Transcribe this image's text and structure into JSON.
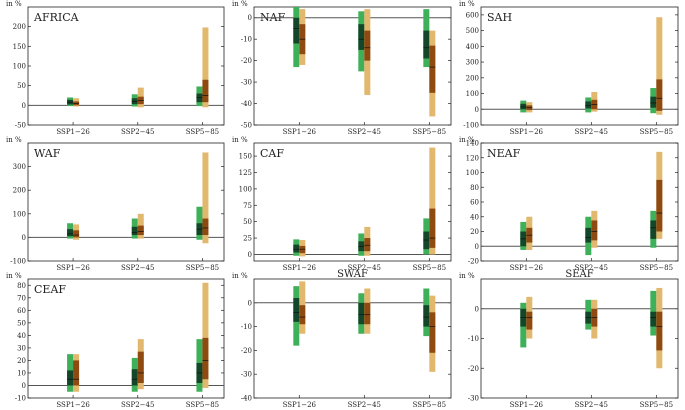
{
  "colors": {
    "cmip_outer": "#3fb05a",
    "cmip_inner": "#14472a",
    "cordex_outer": "#e1b86d",
    "cordex_inner": "#8e4a10",
    "zero_line": "#555555"
  },
  "chart_data": [
    {
      "type": "box-range",
      "title": "AFRICA",
      "unit_label": "in %",
      "title_inside": true,
      "ylim": [
        -50,
        250
      ],
      "yticks": [
        -50,
        0,
        50,
        100,
        150,
        200
      ],
      "categories": [
        "SSP1−26",
        "SSP2−45",
        "SSP5−85"
      ],
      "series": [
        {
          "name": "green",
          "data": [
            [
              -2,
              2,
              8,
              14,
              20
            ],
            [
              -3,
              3,
              10,
              18,
              28
            ],
            [
              -2,
              8,
              20,
              30,
              48
            ]
          ]
        },
        {
          "name": "brown",
          "data": [
            [
              -3,
              0,
              5,
              10,
              18
            ],
            [
              -5,
              3,
              12,
              22,
              45
            ],
            [
              -5,
              8,
              25,
              65,
              198
            ]
          ]
        }
      ]
    },
    {
      "type": "box-range",
      "title": "NAF",
      "unit_label": "in %",
      "title_inside": true,
      "ylim": [
        -50,
        5
      ],
      "yticks": [
        -50,
        -40,
        -30,
        -20,
        -10,
        0
      ],
      "categories": [
        "SSP1−26",
        "SSP2−45",
        "SSP5−85"
      ],
      "series": [
        {
          "name": "green",
          "data": [
            [
              -23,
              -12,
              -5,
              0,
              5
            ],
            [
              -25,
              -15,
              -10,
              -3,
              3
            ],
            [
              -23,
              -19,
              -14,
              -6,
              4
            ]
          ]
        },
        {
          "name": "brown",
          "data": [
            [
              -22,
              -17,
              -10,
              -3,
              4
            ],
            [
              -36,
              -20,
              -14,
              -6,
              4
            ],
            [
              -46,
              -35,
              -23,
              -13,
              -6
            ]
          ]
        }
      ]
    },
    {
      "type": "box-range",
      "title": "SAH",
      "unit_label": "in %",
      "title_inside": true,
      "ylim": [
        -100,
        650
      ],
      "yticks": [
        -100,
        0,
        100,
        200,
        300,
        400,
        500,
        600
      ],
      "categories": [
        "SSP1−26",
        "SSP2−45",
        "SSP5−85"
      ],
      "series": [
        {
          "name": "green",
          "data": [
            [
              -20,
              0,
              15,
              35,
              55
            ],
            [
              -20,
              5,
              25,
              50,
              75
            ],
            [
              -25,
              10,
              40,
              80,
              135
            ]
          ]
        },
        {
          "name": "brown",
          "data": [
            [
              -20,
              -5,
              10,
              25,
              45
            ],
            [
              -15,
              0,
              30,
              60,
              110
            ],
            [
              -35,
              -10,
              70,
              190,
              585
            ]
          ]
        }
      ]
    },
    {
      "type": "box-range",
      "title": "WAF",
      "unit_label": "in %",
      "title_inside": true,
      "ylim": [
        -100,
        400
      ],
      "yticks": [
        -100,
        0,
        100,
        200,
        300
      ],
      "categories": [
        "SSP1−26",
        "SSP2−45",
        "SSP5−85"
      ],
      "series": [
        {
          "name": "green",
          "data": [
            [
              -5,
              5,
              15,
              35,
              60
            ],
            [
              -5,
              10,
              20,
              45,
              80
            ],
            [
              -10,
              10,
              35,
              60,
              130
            ]
          ]
        },
        {
          "name": "brown",
          "data": [
            [
              -10,
              0,
              10,
              30,
              55
            ],
            [
              -5,
              10,
              25,
              50,
              100
            ],
            [
              -25,
              10,
              40,
              80,
              360
            ]
          ]
        }
      ]
    },
    {
      "type": "box-range",
      "title": "CAF",
      "unit_label": "in %",
      "title_inside": true,
      "ylim": [
        -10,
        170
      ],
      "yticks": [
        0,
        25,
        50,
        75,
        100,
        125,
        150
      ],
      "categories": [
        "SSP1−26",
        "SSP2−45",
        "SSP5−85"
      ],
      "series": [
        {
          "name": "green",
          "data": [
            [
              -2,
              3,
              8,
              15,
              23
            ],
            [
              -2,
              5,
              12,
              20,
              32
            ],
            [
              0,
              8,
              22,
              35,
              55
            ]
          ]
        },
        {
          "name": "brown",
          "data": [
            [
              -3,
              2,
              8,
              13,
              22
            ],
            [
              -2,
              5,
              14,
              25,
              42
            ],
            [
              0,
              10,
              25,
              70,
              163
            ]
          ]
        }
      ]
    },
    {
      "type": "box-range",
      "title": "NEAF",
      "unit_label": "in %",
      "title_inside": true,
      "ylim": [
        -20,
        140
      ],
      "yticks": [
        -20,
        0,
        20,
        40,
        60,
        80,
        100,
        120,
        140
      ],
      "categories": [
        "SSP1−26",
        "SSP2−45",
        "SSP5−85"
      ],
      "series": [
        {
          "name": "green",
          "data": [
            [
              -5,
              0,
              10,
              20,
              33
            ],
            [
              -12,
              5,
              12,
              25,
              40
            ],
            [
              -2,
              10,
              25,
              35,
              48
            ]
          ]
        },
        {
          "name": "brown",
          "data": [
            [
              -5,
              5,
              15,
              25,
              40
            ],
            [
              -2,
              8,
              20,
              35,
              48
            ],
            [
              10,
              20,
              45,
              90,
              128
            ]
          ]
        }
      ]
    },
    {
      "type": "box-range",
      "title": "CEAF",
      "unit_label": "in %",
      "title_inside": true,
      "ylim": [
        -10,
        85
      ],
      "yticks": [
        -10,
        0,
        10,
        20,
        30,
        40,
        50,
        60,
        70,
        80
      ],
      "categories": [
        "SSP1−26",
        "SSP2−45",
        "SSP5−85"
      ],
      "series": [
        {
          "name": "green",
          "data": [
            [
              -5,
              0,
              5,
              12,
              25
            ],
            [
              -5,
              0,
              5,
              13,
              22
            ],
            [
              -5,
              2,
              10,
              18,
              37
            ]
          ]
        },
        {
          "name": "brown",
          "data": [
            [
              -5,
              0,
              5,
              20,
              25
            ],
            [
              -3,
              2,
              10,
              27,
              37
            ],
            [
              -2,
              5,
              20,
              38,
              82
            ]
          ]
        }
      ]
    },
    {
      "type": "box-range",
      "title": "SWAF",
      "unit_label": "in %",
      "title_inside": false,
      "ylim": [
        -40,
        10
      ],
      "yticks": [
        -40,
        -30,
        -20,
        -10,
        0
      ],
      "categories": [
        "SSP1−26",
        "SSP2−45",
        "SSP5−85"
      ],
      "series": [
        {
          "name": "green",
          "data": [
            [
              -18,
              -8,
              -4,
              2,
              7
            ],
            [
              -13,
              -9,
              -5,
              0,
              4
            ],
            [
              -14,
              -10,
              -6,
              -1,
              6
            ]
          ]
        },
        {
          "name": "brown",
          "data": [
            [
              -13,
              -9,
              -6,
              -1,
              9
            ],
            [
              -13,
              -9,
              -5,
              0,
              6
            ],
            [
              -29,
              -21,
              -10,
              -4,
              3
            ]
          ]
        }
      ]
    },
    {
      "type": "box-range",
      "title": "SEAF",
      "unit_label": "in %",
      "title_inside": false,
      "ylim": [
        -30,
        10
      ],
      "yticks": [
        -30,
        -20,
        -10,
        0
      ],
      "categories": [
        "SSP1−26",
        "SSP2−45",
        "SSP5−85"
      ],
      "series": [
        {
          "name": "green",
          "data": [
            [
              -13,
              -6,
              -3,
              0,
              2
            ],
            [
              -7,
              -5,
              -3,
              -1,
              3
            ],
            [
              -9,
              -6,
              -3,
              -1,
              6
            ]
          ]
        },
        {
          "name": "brown",
          "data": [
            [
              -10,
              -7,
              -3,
              -1,
              4
            ],
            [
              -10,
              -6,
              -3,
              0,
              3
            ],
            [
              -20,
              -14,
              -6,
              -1,
              7
            ]
          ]
        }
      ]
    }
  ]
}
